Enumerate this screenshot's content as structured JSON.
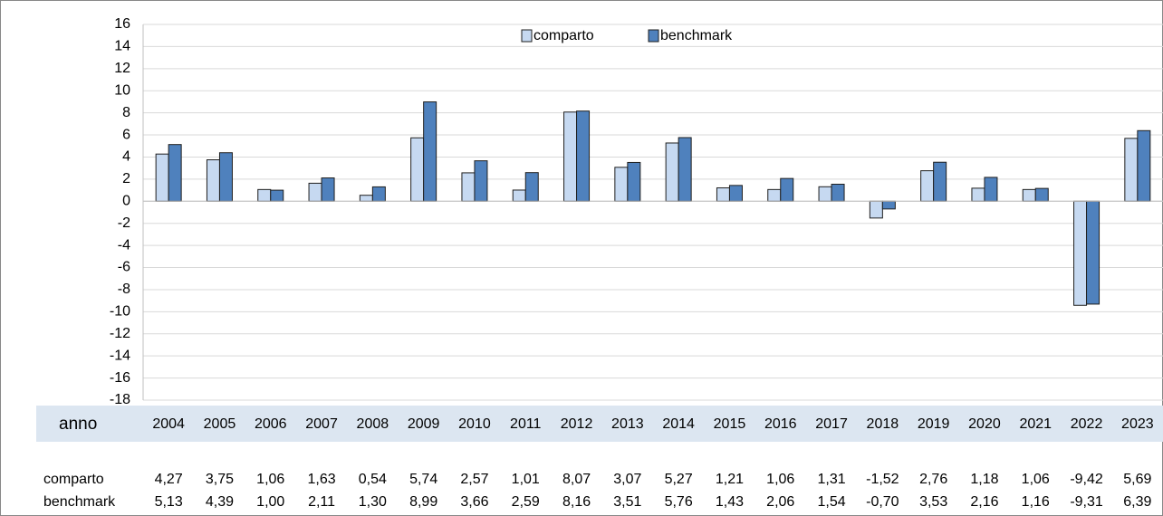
{
  "chart_data": {
    "type": "bar",
    "categories": [
      "2004",
      "2005",
      "2006",
      "2007",
      "2008",
      "2009",
      "2010",
      "2011",
      "2012",
      "2013",
      "2014",
      "2015",
      "2016",
      "2017",
      "2018",
      "2019",
      "2020",
      "2021",
      "2022",
      "2023"
    ],
    "series": [
      {
        "name": "comparto",
        "color": "#c6d9f1",
        "values": [
          4.27,
          3.75,
          1.06,
          1.63,
          0.54,
          5.74,
          2.57,
          1.01,
          8.07,
          3.07,
          5.27,
          1.21,
          1.06,
          1.31,
          -1.52,
          2.76,
          1.18,
          1.06,
          -9.42,
          5.69
        ],
        "value_labels": [
          "4,27",
          "3,75",
          "1,06",
          "1,63",
          "0,54",
          "5,74",
          "2,57",
          "1,01",
          "8,07",
          "3,07",
          "5,27",
          "1,21",
          "1,06",
          "1,31",
          "-1,52",
          "2,76",
          "1,18",
          "1,06",
          "-9,42",
          "5,69"
        ]
      },
      {
        "name": "benchmark",
        "color": "#4f81bd",
        "values": [
          5.13,
          4.39,
          1.0,
          2.11,
          1.3,
          8.99,
          3.66,
          2.59,
          8.16,
          3.51,
          5.76,
          1.43,
          2.06,
          1.54,
          -0.7,
          3.53,
          2.16,
          1.16,
          -9.31,
          6.39
        ],
        "value_labels": [
          "5,13",
          "4,39",
          "1,00",
          "2,11",
          "1,30",
          "8,99",
          "3,66",
          "2,59",
          "8,16",
          "3,51",
          "5,76",
          "1,43",
          "2,06",
          "1,54",
          "-0,70",
          "3,53",
          "2,16",
          "1,16",
          "-9,31",
          "6,39"
        ]
      }
    ],
    "ylim": [
      -18,
      16
    ],
    "yticks": [
      -18,
      -16,
      -14,
      -12,
      -10,
      -8,
      -6,
      -4,
      -2,
      0,
      2,
      4,
      6,
      8,
      10,
      12,
      14,
      16
    ],
    "grid": true,
    "legend": "top",
    "table_header": "anno"
  }
}
